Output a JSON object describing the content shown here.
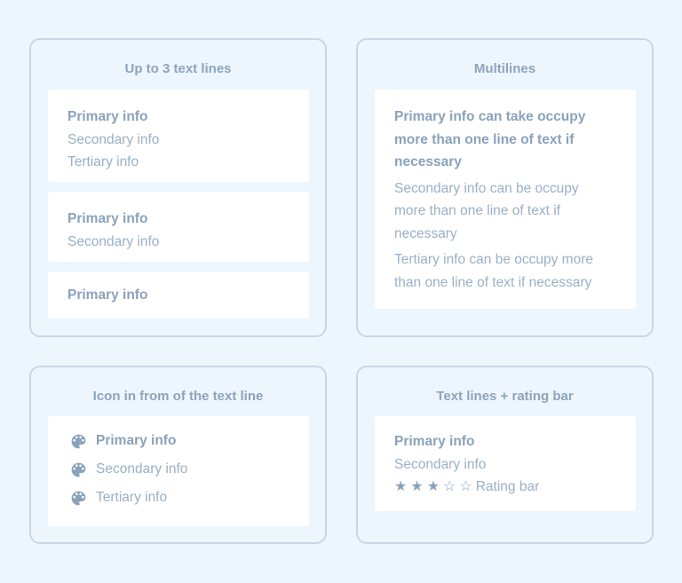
{
  "panels": {
    "three": {
      "title": "Up to 3 text lines",
      "cards": [
        {
          "primary": "Primary info",
          "secondary": "Secondary info",
          "tertiary": "Tertiary info"
        },
        {
          "primary": "Primary info",
          "secondary": "Secondary info"
        },
        {
          "primary": "Primary info"
        }
      ]
    },
    "multi": {
      "title": "Multilines",
      "primary": "Primary info can take occupy more than one line of text if necessary",
      "secondary": "Secondary info can be occupy more than one line of text if necessary",
      "tertiary": "Tertiary info can be occupy more than one line of text if necessary"
    },
    "icon": {
      "title": "Icon in from of the text line",
      "icon": "palette-icon",
      "primary": "Primary info",
      "secondary": "Secondary info",
      "tertiary": "Tertiary info"
    },
    "rating": {
      "title": "Text lines + rating bar",
      "primary": "Primary info",
      "secondary": "Secondary info",
      "rating": 3,
      "max_rating": 5,
      "rating_label": "Rating bar"
    }
  },
  "colors": {
    "background": "#edf5fd",
    "border": "#c9d7e4",
    "primary_text": "#8aa2bb",
    "secondary_text": "#9ab0c6"
  }
}
